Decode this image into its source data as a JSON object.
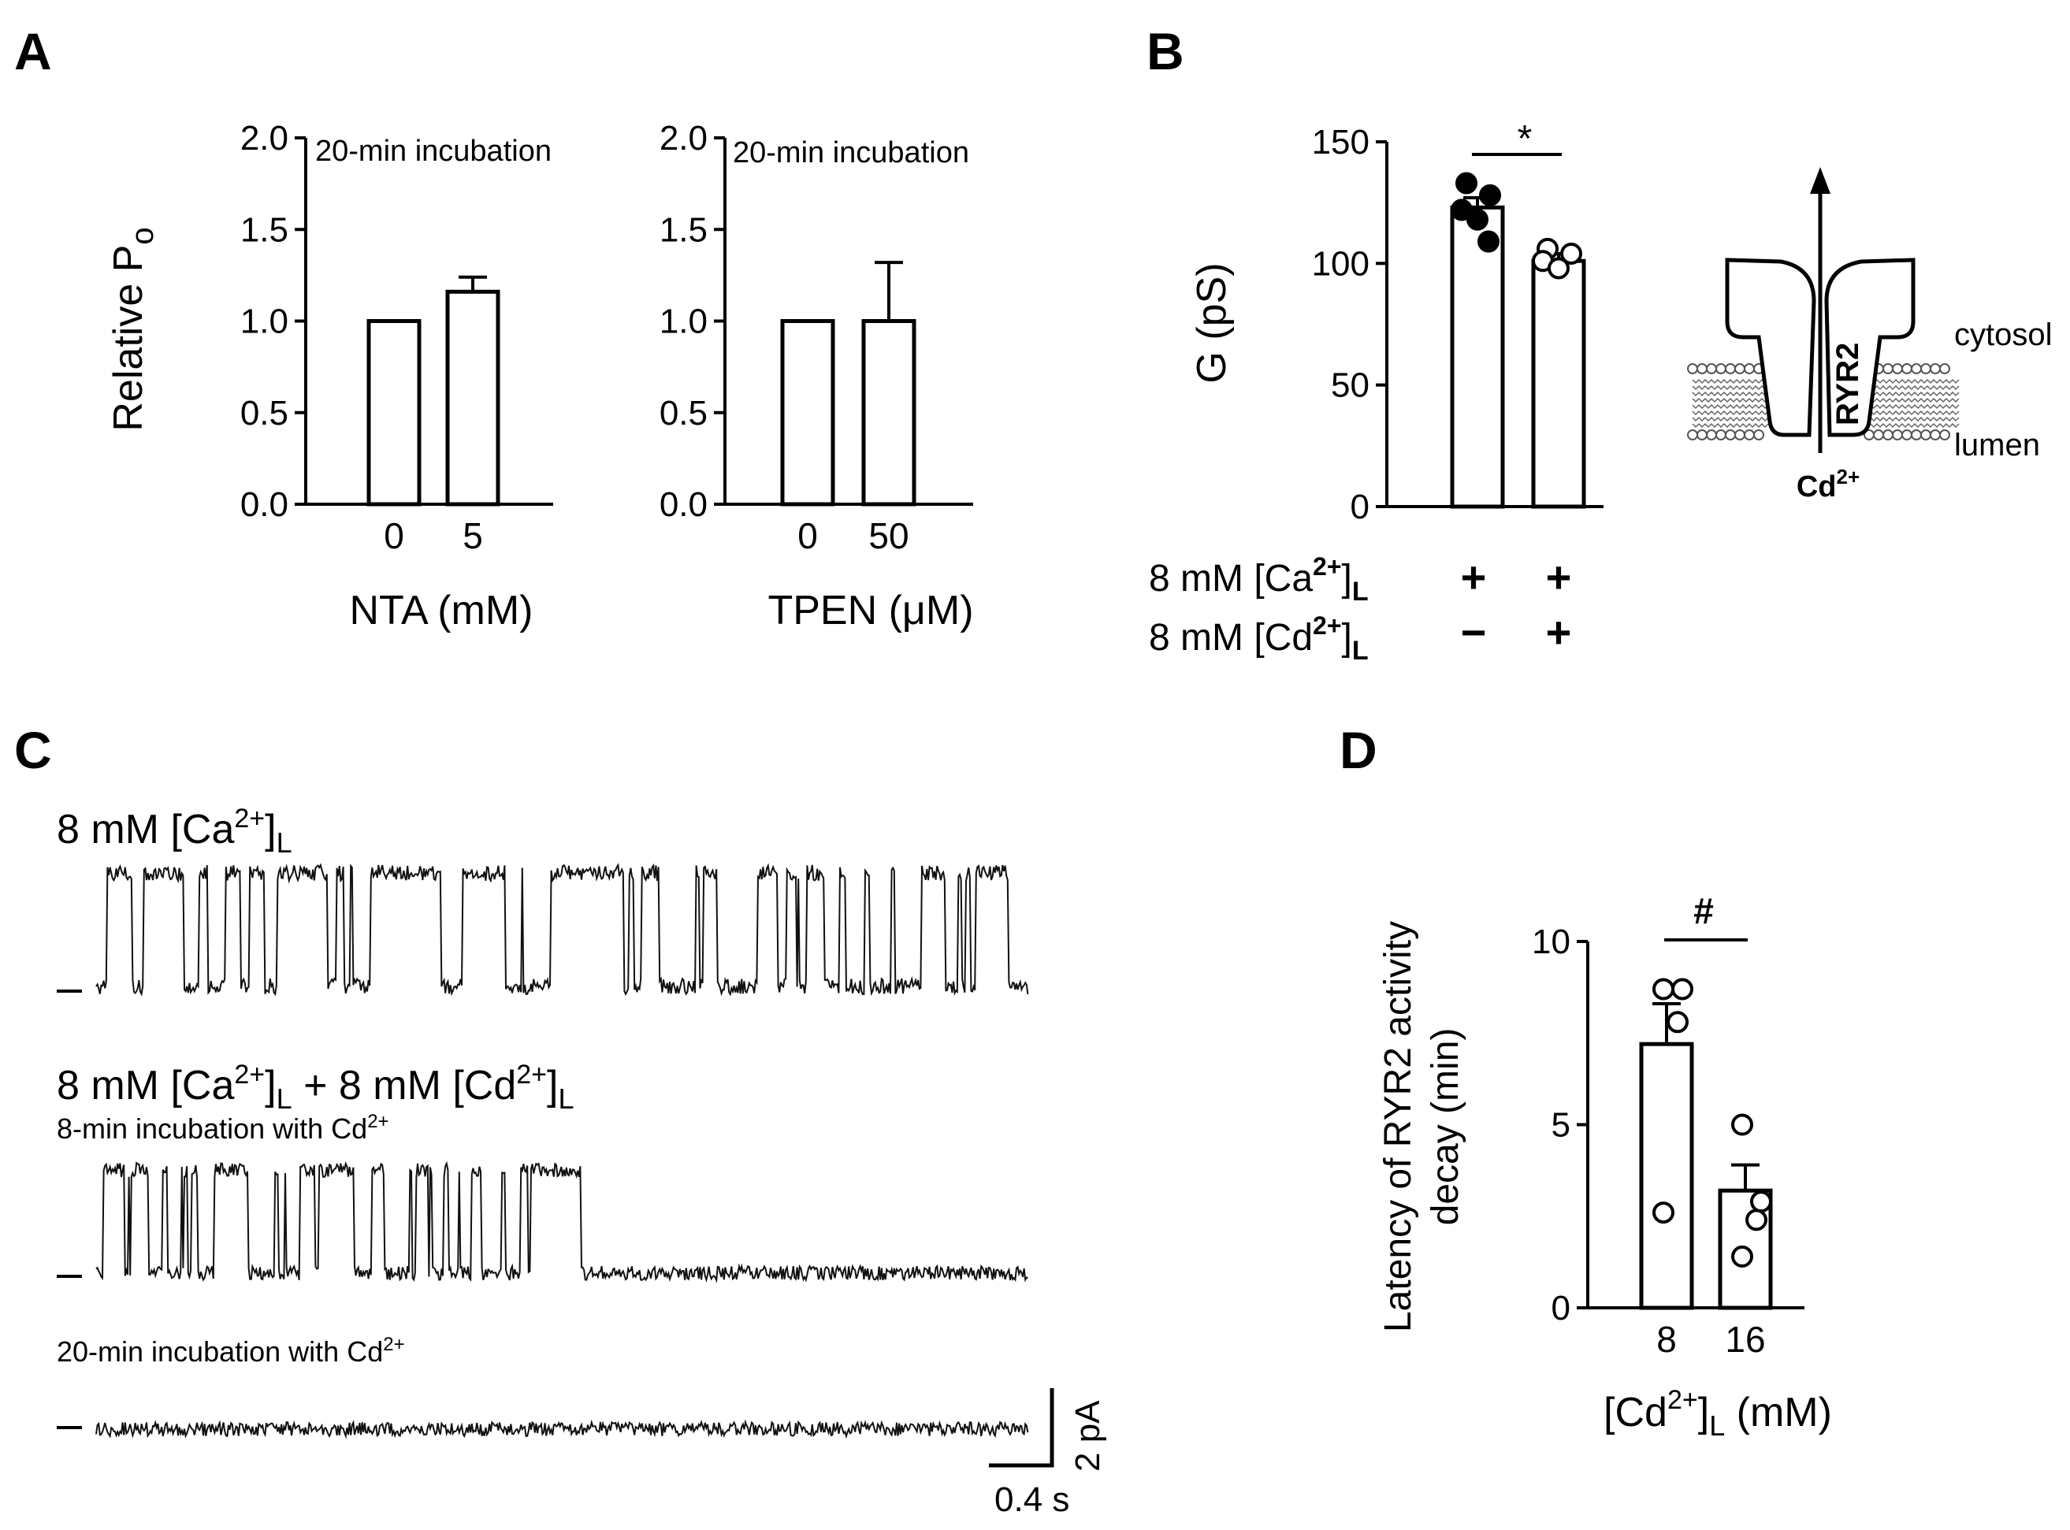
{
  "panels": {
    "A": {
      "label": "A"
    },
    "B": {
      "label": "B"
    },
    "C": {
      "label": "C"
    },
    "D": {
      "label": "D"
    }
  },
  "chart_data": [
    {
      "id": "A1",
      "type": "bar",
      "ylabel": "Relative P",
      "ylabel_sub": "o",
      "ylim": [
        0,
        2.0
      ],
      "yticks": [
        "0.0",
        "0.5",
        "1.0",
        "1.5",
        "2.0"
      ],
      "categories": [
        "0",
        "5"
      ],
      "values": [
        1.0,
        1.16
      ],
      "errors": [
        0,
        0.08
      ],
      "xlabel": "NTA (mM)",
      "annotation": "20-min incubation"
    },
    {
      "id": "A2",
      "type": "bar",
      "ylim": [
        0,
        2.0
      ],
      "yticks": [
        "0.0",
        "0.5",
        "1.0",
        "1.5",
        "2.0"
      ],
      "categories": [
        "0",
        "50"
      ],
      "values": [
        1.0,
        1.0
      ],
      "errors": [
        0,
        0.32
      ],
      "xlabel": "TPEN (μM)",
      "annotation": "20-min incubation"
    },
    {
      "id": "B",
      "type": "bar",
      "ylabel": "G  (pS)",
      "ylim": [
        0,
        150
      ],
      "yticks": [
        "0",
        "50",
        "100",
        "150"
      ],
      "values": [
        123,
        101
      ],
      "errors": [
        4,
        3
      ],
      "points": [
        [
          133,
          128,
          122,
          118,
          109
        ],
        [
          106,
          104,
          101,
          98
        ]
      ],
      "point_fill": [
        "filled",
        "open"
      ],
      "significance": "*",
      "condition_rows": [
        {
          "pre": "8 mM [Ca",
          "sup": "2+",
          "post": "]",
          "sub": "L",
          "signs": [
            "+",
            "+"
          ]
        },
        {
          "pre": "8 mM [Cd",
          "sup": "2+",
          "post": "]",
          "sub": "L",
          "signs": [
            "−",
            "+"
          ]
        }
      ]
    },
    {
      "id": "D",
      "type": "bar",
      "ylabel_line1": "Latency of RYR2 activity",
      "ylabel_line2": "decay (min)",
      "ylim": [
        0,
        10
      ],
      "yticks": [
        "0",
        "5",
        "10"
      ],
      "categories": [
        "8",
        "16"
      ],
      "values": [
        7.2,
        3.2
      ],
      "errors": [
        1.1,
        0.7
      ],
      "points": [
        [
          8.7,
          8.7,
          7.8,
          2.6
        ],
        [
          5.0,
          2.9,
          2.4,
          1.4
        ]
      ],
      "significance": "#",
      "xlabel_pre": "[Cd",
      "xlabel_sup": "2+",
      "xlabel_post": "]",
      "xlabel_sub": "L",
      "xlabel_unit": " (mM)"
    }
  ],
  "diagram": {
    "cytosol": "cytosol",
    "lumen": "lumen",
    "channel": "RYR2",
    "ion": "Cd",
    "ion_sup": "2+"
  },
  "traces": {
    "trace1": {
      "title_pre": "8 mM [Ca",
      "title_sup": "2+",
      "title_post": "]",
      "title_sub": "L"
    },
    "trace2": {
      "title_pre": "8 mM [Ca",
      "title_sup": "2+",
      "title_mid": "]",
      "title_sub": "L",
      "title_plus": " + 8 mM [Cd",
      "title_sup2": "2+",
      "title_end": "]",
      "title_sub2": "L",
      "note": "8-min incubation with Cd",
      "note_sup": "2+"
    },
    "trace3": {
      "note": "20-min incubation with Cd",
      "note_sup": "2+"
    },
    "scale": {
      "y": "2 pA",
      "x": "0.4 s"
    }
  },
  "colors": {
    "ink": "#000000",
    "trace": "#111111",
    "bg": "#ffffff"
  }
}
